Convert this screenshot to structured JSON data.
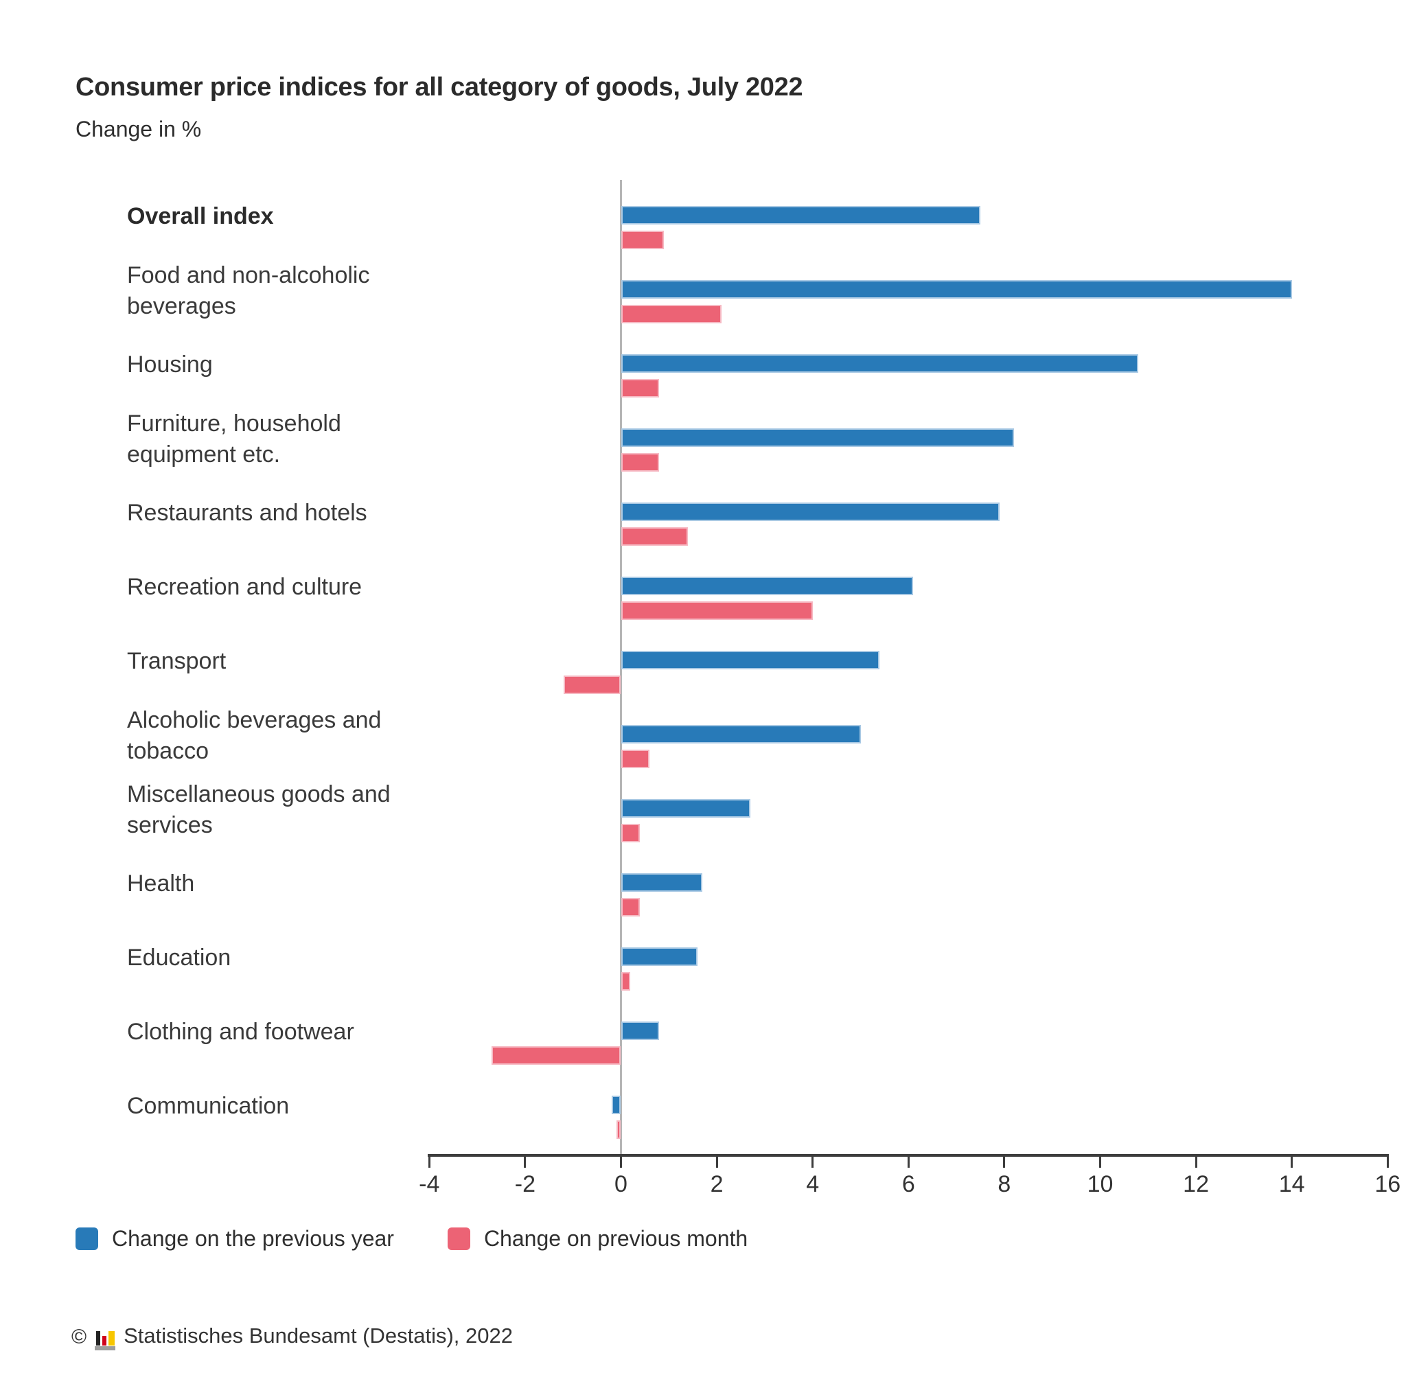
{
  "header": {
    "title": "Consumer price indices for all category of goods, July 2022",
    "subtitle": "Change in %"
  },
  "chart_data": {
    "type": "bar",
    "orientation": "horizontal",
    "title": "Consumer price indices for all category of goods, July 2022",
    "subtitle": "Change in %",
    "unit": "%",
    "categories": [
      "Overall index",
      "Food and non-alcoholic beverages",
      "Housing",
      "Furniture, household equipment etc.",
      "Restaurants and hotels",
      "Recreation and culture",
      "Transport",
      "Alcoholic beverages and tobacco",
      "Miscellaneous goods and services",
      "Health",
      "Education",
      "Clothing and footwear",
      "Communication"
    ],
    "emphasized_category_index": 0,
    "series": [
      {
        "name": "Change on the previous year",
        "color": "#287ab8",
        "edge_color": "#a9c9e4",
        "values": [
          7.5,
          14.0,
          10.8,
          8.2,
          7.9,
          6.1,
          5.4,
          5.0,
          2.7,
          1.7,
          1.6,
          0.8,
          -0.2
        ]
      },
      {
        "name": "Change on previous month",
        "color": "#ec6375",
        "edge_color": "#f6b9c3",
        "values": [
          0.9,
          2.1,
          0.8,
          0.8,
          1.4,
          4.0,
          -1.2,
          0.6,
          0.4,
          0.4,
          0.2,
          -2.7,
          -0.1
        ]
      }
    ],
    "xlim": [
      -4,
      16
    ],
    "x_ticks": [
      -4,
      -2,
      0,
      2,
      4,
      6,
      8,
      10,
      12,
      14,
      16
    ],
    "grid": false,
    "zero_line": true,
    "legend_position": "bottom"
  },
  "legend": {
    "items": [
      {
        "label": "Change on the previous year",
        "color": "#287ab8"
      },
      {
        "label": "Change on previous month",
        "color": "#ec6375"
      }
    ]
  },
  "footer": {
    "copyright": "©",
    "source": "Statistisches Bundesamt (Destatis), 2022",
    "logo_colors": {
      "black": "#222222",
      "red": "#d0021b",
      "yellow": "#f7c600",
      "base": "#9d9d9c"
    }
  },
  "colors": {
    "axis": "#3d3d3d",
    "zero_line": "#b5b5b5",
    "text": "#2e2e2e"
  }
}
